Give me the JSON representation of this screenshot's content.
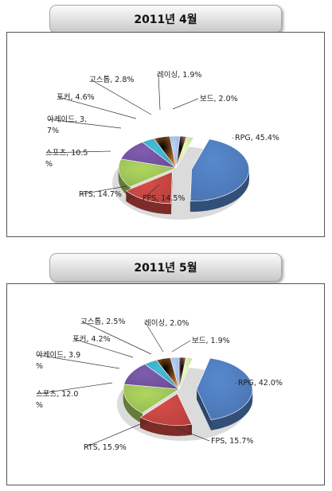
{
  "chart_data": [
    {
      "type": "pie",
      "title": "2011년 4월",
      "slices": [
        {
          "name": "RPG",
          "value": 45.4,
          "label_lines": [
            "RPG, 45.4%"
          ],
          "color": "#4a74b0"
        },
        {
          "name": "FPS",
          "value": 14.5,
          "label_lines": [
            "FPS, 14.5%"
          ],
          "color": "#b8413d"
        },
        {
          "name": "RTS",
          "value": 14.7,
          "label_lines": [
            "RTS, 14.7%"
          ],
          "color": "#94b651"
        },
        {
          "name": "스포츠",
          "value": 10.5,
          "label_lines": [
            "스포츠, 10.5",
            "%"
          ],
          "color": "#6c4e95"
        },
        {
          "name": "아케이드",
          "value": 3.7,
          "label_lines": [
            "아케이드, 3.",
            "7%"
          ],
          "color": "#3aa0ba"
        },
        {
          "name": "포커",
          "value": 4.6,
          "label_lines": [
            "포커, 4.6%"
          ],
          "color": "#ec8a30"
        },
        {
          "name": "고스톱",
          "value": 2.8,
          "label_lines": [
            "고스톱, 2.8%"
          ],
          "color": "#9ab2d7"
        },
        {
          "name": "레이싱",
          "value": 1.9,
          "label_lines": [
            "레이싱, 1.9%"
          ],
          "color": "#d99694"
        },
        {
          "name": "보드",
          "value": 2.0,
          "label_lines": [
            "보드, 2.0%"
          ],
          "color": "#c4d79b"
        }
      ]
    },
    {
      "type": "pie",
      "title": "2011년 5월",
      "slices": [
        {
          "name": "RPG",
          "value": 42.0,
          "label_lines": [
            "RPG, 42.0%"
          ],
          "color": "#4a74b0"
        },
        {
          "name": "FPS",
          "value": 15.7,
          "label_lines": [
            "FPS, 15.7%"
          ],
          "color": "#b8413d"
        },
        {
          "name": "RTS",
          "value": 15.9,
          "label_lines": [
            "RTS, 15.9%"
          ],
          "color": "#94b651"
        },
        {
          "name": "스포츠",
          "value": 12.0,
          "label_lines": [
            "스포츠, 12.0",
            "%"
          ],
          "color": "#6c4e95"
        },
        {
          "name": "아케이드",
          "value": 3.9,
          "label_lines": [
            "아케이드, 3.9",
            "%"
          ],
          "color": "#3aa0ba"
        },
        {
          "name": "포커",
          "value": 4.2,
          "label_lines": [
            "포커, 4.2%"
          ],
          "color": "#ec8a30"
        },
        {
          "name": "고스톱",
          "value": 2.5,
          "label_lines": [
            "고스톱, 2.5%"
          ],
          "color": "#9ab2d7"
        },
        {
          "name": "레이싱",
          "value": 2.0,
          "label_lines": [
            "레이싱, 2.0%"
          ],
          "color": "#d99694"
        },
        {
          "name": "보드",
          "value": 1.9,
          "label_lines": [
            "보드, 1.9%"
          ],
          "color": "#c4d79b"
        }
      ]
    }
  ]
}
